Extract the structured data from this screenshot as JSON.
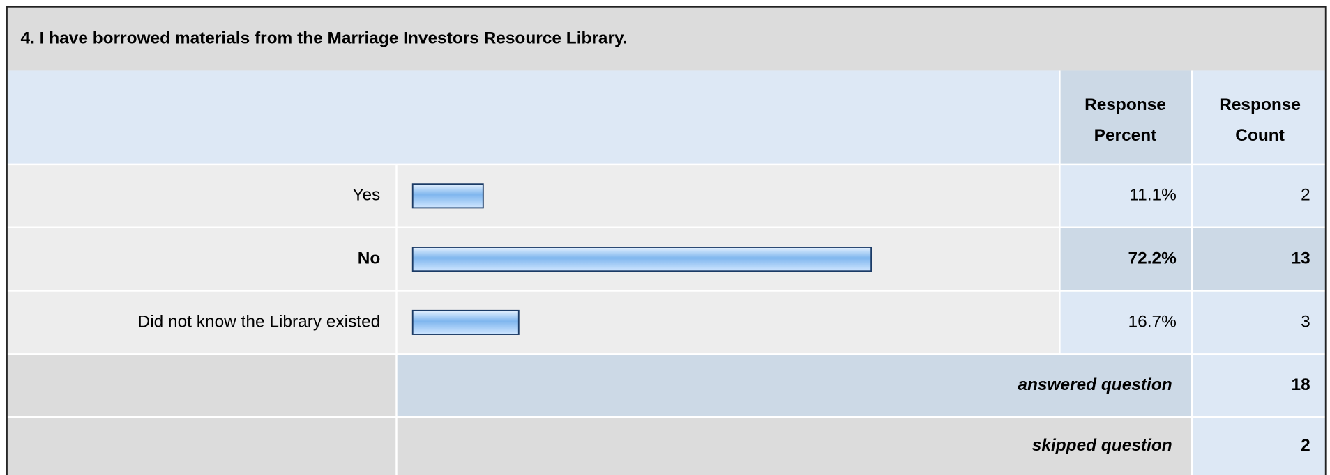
{
  "chart_data": {
    "type": "bar",
    "title": "4. I have borrowed materials from the Marriage Investors Resource Library.",
    "column_headers": [
      [
        "Response",
        "Percent"
      ],
      [
        "Response",
        "Count"
      ]
    ],
    "categories": [
      "Yes",
      "No",
      "Did not know the Library existed"
    ],
    "values": [
      11.1,
      72.2,
      16.7
    ],
    "value_labels": [
      "11.1%",
      "72.2%",
      "16.7%"
    ],
    "counts": [
      2,
      13,
      3
    ],
    "xlim": [
      0,
      100
    ],
    "color": "#8ec4f5",
    "answered": {
      "label": "answered question",
      "value": 18
    },
    "skipped": {
      "label": "skipped question",
      "value": 2
    }
  }
}
